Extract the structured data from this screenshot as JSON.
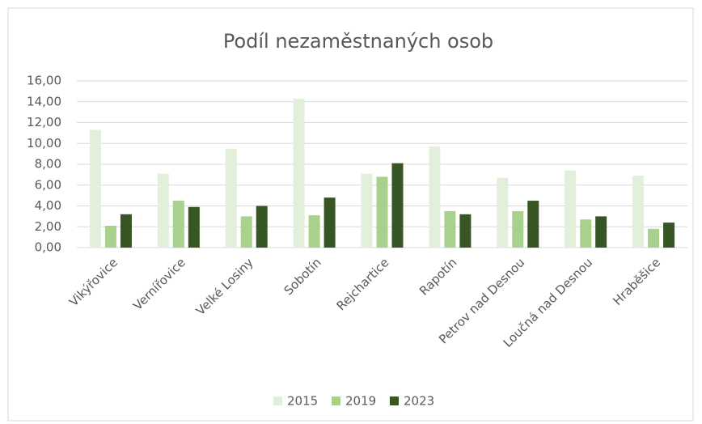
{
  "chart_data": {
    "type": "bar",
    "title": "Podíl nezaměstnaných osob",
    "categories": [
      "Vikýřovice",
      "Vernířovice",
      "Velké Losiny",
      "Sobotín",
      "Rejchartice",
      "Rapotín",
      "Petrov nad Desnou",
      "Loučná nad Desnou",
      "Hraběšice"
    ],
    "series": [
      {
        "name": "2015",
        "color": "#e2efda",
        "values": [
          11.3,
          7.1,
          9.5,
          14.3,
          7.1,
          9.7,
          6.7,
          7.4,
          6.9
        ]
      },
      {
        "name": "2019",
        "color": "#a9d18e",
        "values": [
          2.1,
          4.5,
          3.0,
          3.1,
          6.8,
          3.5,
          3.5,
          2.7,
          1.8
        ]
      },
      {
        "name": "2023",
        "color": "#375623",
        "values": [
          3.2,
          3.9,
          4.0,
          4.8,
          8.1,
          3.2,
          4.5,
          3.0,
          2.4
        ]
      }
    ],
    "ylim": [
      0,
      16
    ],
    "yticks": [
      {
        "value": 0,
        "label": "0,00"
      },
      {
        "value": 2,
        "label": "2,00"
      },
      {
        "value": 4,
        "label": "4,00"
      },
      {
        "value": 6,
        "label": "6,00"
      },
      {
        "value": 8,
        "label": "8,00"
      },
      {
        "value": 10,
        "label": "10,00"
      },
      {
        "value": 12,
        "label": "12,00"
      },
      {
        "value": 14,
        "label": "14,00"
      },
      {
        "value": 16,
        "label": "16,00"
      }
    ],
    "grid": true,
    "legend": "bottom"
  }
}
